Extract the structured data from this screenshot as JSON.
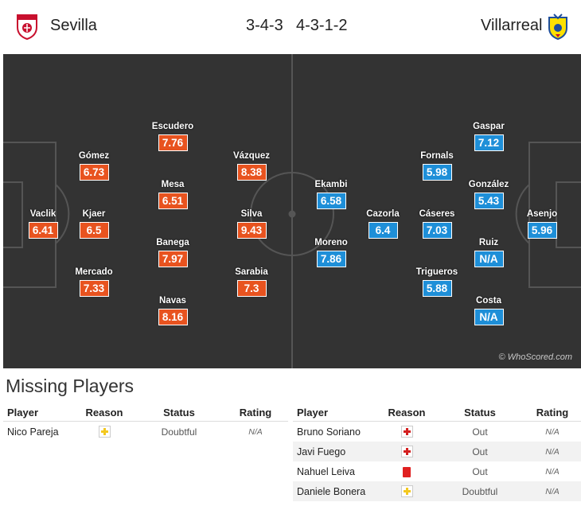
{
  "header": {
    "home_team": "Sevilla",
    "home_formation": "3-4-3",
    "away_formation": "4-3-1-2",
    "away_team": "Villarreal",
    "home_crest_icon": "sevilla-crest-icon",
    "away_crest_icon": "villarreal-crest-icon"
  },
  "colors": {
    "home_rating": "#e8531f",
    "away_rating": "#1e8fd8",
    "pitch": "#333333"
  },
  "home_players": [
    {
      "name": "Vaclik",
      "rating": "6.41"
    },
    {
      "name": "Kjaer",
      "rating": "6.5"
    },
    {
      "name": "Gómez",
      "rating": "6.73"
    },
    {
      "name": "Mercado",
      "rating": "7.33"
    },
    {
      "name": "Escudero",
      "rating": "7.76"
    },
    {
      "name": "Mesa",
      "rating": "6.51"
    },
    {
      "name": "Banega",
      "rating": "7.97"
    },
    {
      "name": "Navas",
      "rating": "8.16"
    },
    {
      "name": "Vázquez",
      "rating": "8.38"
    },
    {
      "name": "Silva",
      "rating": "9.43"
    },
    {
      "name": "Sarabia",
      "rating": "7.3"
    }
  ],
  "away_players": [
    {
      "name": "Ekambi",
      "rating": "6.58"
    },
    {
      "name": "Moreno",
      "rating": "7.86"
    },
    {
      "name": "Cazorla",
      "rating": "6.4"
    },
    {
      "name": "Fornals",
      "rating": "5.98"
    },
    {
      "name": "Cáseres",
      "rating": "7.03"
    },
    {
      "name": "Trigueros",
      "rating": "5.88"
    },
    {
      "name": "Gaspar",
      "rating": "7.12"
    },
    {
      "name": "González",
      "rating": "5.43"
    },
    {
      "name": "Ruiz",
      "rating": "N/A"
    },
    {
      "name": "Costa",
      "rating": "N/A"
    },
    {
      "name": "Asenjo",
      "rating": "5.96"
    }
  ],
  "watermark": "© WhoScored.com",
  "missing": {
    "title": "Missing Players",
    "columns": [
      "Player",
      "Reason",
      "Status",
      "Rating"
    ],
    "home": [
      {
        "player": "Nico Pareja",
        "reason_icon": "doubtful-icon",
        "status": "Doubtful",
        "rating": "N/A"
      }
    ],
    "away": [
      {
        "player": "Bruno Soriano",
        "reason_icon": "injury-icon",
        "status": "Out",
        "rating": "N/A"
      },
      {
        "player": "Javi Fuego",
        "reason_icon": "injury-icon",
        "status": "Out",
        "rating": "N/A"
      },
      {
        "player": "Nahuel Leiva",
        "reason_icon": "red-card-icon",
        "status": "Out",
        "rating": "N/A"
      },
      {
        "player": "Daniele Bonera",
        "reason_icon": "doubtful-icon",
        "status": "Doubtful",
        "rating": "N/A"
      }
    ]
  }
}
